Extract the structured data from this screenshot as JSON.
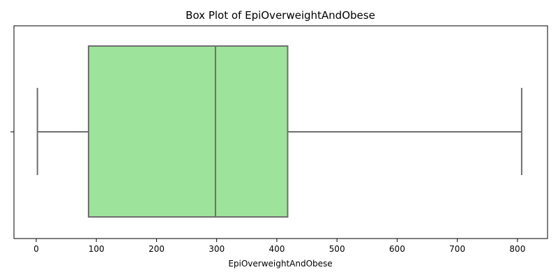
{
  "chart_data": {
    "type": "boxplot",
    "title": "Box Plot of EpiOverweightAndObese",
    "xlabel": "EpiOverweightAndObese",
    "ylabel": "",
    "xlim": [
      -37,
      850
    ],
    "x_ticks": [
      0,
      100,
      200,
      300,
      400,
      500,
      600,
      700,
      800
    ],
    "box": {
      "whisker_low": 2,
      "q1": 87,
      "median": 298,
      "q3": 418,
      "whisker_high": 807
    },
    "box_color": "#9de39b",
    "line_color": "#6e6e6e",
    "grid": false,
    "legend": "none"
  }
}
